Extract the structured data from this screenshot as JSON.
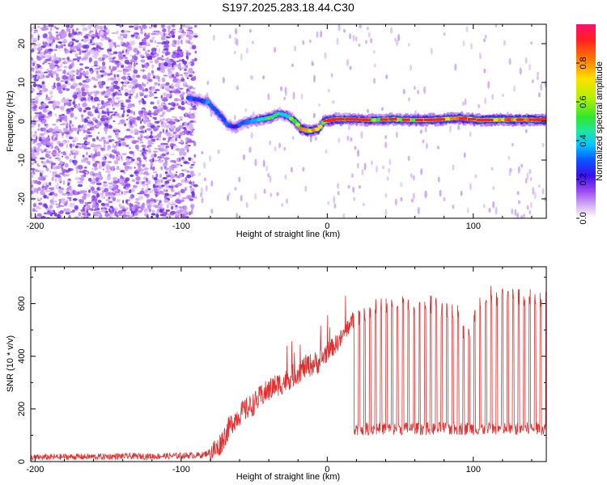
{
  "chart_data": [
    {
      "type": "heatmap",
      "title": "S197.2025.283.18.44.C30",
      "xlabel": "Height of straight line (km)",
      "ylabel": "Frequency (Hz)",
      "xlim": [
        -203,
        150
      ],
      "ylim": [
        -25,
        25
      ],
      "xticks": [
        -200,
        -100,
        0,
        100
      ],
      "yticks": [
        20,
        10,
        0,
        -10,
        -20
      ],
      "colorbar": {
        "label": "Normalized spectral amplitude",
        "range": [
          0.0,
          1.0
        ],
        "ticks": [
          0.0,
          0.2,
          0.4,
          0.6,
          0.8
        ],
        "tick_labels": [
          "0.0",
          "0.2",
          "0.4",
          "0.6",
          "0.8"
        ]
      },
      "noise_region": {
        "x_from": -203,
        "x_to": -90,
        "frequency_range": [
          -25,
          25
        ],
        "amplitude": 0.15
      },
      "ridge": {
        "x": [
          -95,
          -88,
          -82,
          -77,
          -72,
          -68,
          -63,
          -58,
          -52,
          -45,
          -38,
          -33,
          -28,
          -22,
          -18,
          -12,
          -6,
          -2,
          5,
          15,
          30,
          45,
          60,
          75,
          90,
          105,
          120,
          135,
          150
        ],
        "frequency": [
          6,
          5.5,
          5,
          3,
          1,
          -1,
          -1.5,
          -0.5,
          0,
          0.5,
          1,
          2,
          1.5,
          0,
          -2,
          -2.5,
          -2,
          0,
          0.5,
          0.5,
          0.3,
          0.5,
          0.3,
          0.4,
          0.8,
          0.3,
          0.4,
          0.4,
          0.4
        ],
        "amplitude": [
          0.35,
          0.3,
          0.35,
          0.35,
          0.35,
          0.3,
          0.3,
          0.3,
          0.4,
          0.5,
          0.6,
          0.5,
          0.5,
          0.7,
          0.85,
          0.9,
          0.7,
          0.7,
          0.85,
          0.6,
          0.6,
          0.7,
          0.7,
          0.8,
          0.8,
          0.85,
          0.85,
          0.9,
          0.9
        ]
      }
    },
    {
      "type": "line",
      "xlabel": "Height of straight line (km)",
      "ylabel": "SNR (10 * v/v)",
      "xlim": [
        -203,
        150
      ],
      "ylim": [
        0,
        740
      ],
      "xticks": [
        -200,
        -100,
        0,
        100
      ],
      "yticks": [
        0,
        200,
        400,
        600
      ],
      "series": [
        {
          "name": "SNR",
          "color": "#e03030",
          "x": [
            -203,
            -180,
            -160,
            -140,
            -120,
            -100,
            -85,
            -75,
            -70,
            -65,
            -60,
            -55,
            -50,
            -45,
            -40,
            -35,
            -30,
            -25,
            -20,
            -15,
            -10,
            -5,
            0,
            5,
            10,
            15,
            20,
            25,
            30,
            40,
            50,
            60,
            70,
            80,
            90,
            95,
            100,
            105,
            110,
            115,
            120,
            125,
            130,
            135,
            140,
            145,
            150
          ],
          "values": [
            15,
            18,
            18,
            20,
            20,
            22,
            25,
            50,
            100,
            150,
            180,
            200,
            220,
            250,
            270,
            290,
            300,
            320,
            340,
            360,
            370,
            380,
            420,
            440,
            470,
            520,
            550,
            560,
            580,
            590,
            600,
            590,
            600,
            580,
            560,
            460,
            540,
            600,
            640,
            620,
            640,
            620,
            630,
            600,
            640,
            620,
            640
          ],
          "dropouts": {
            "x_from": 18,
            "x_to": 150,
            "level": [
              100,
              150
            ],
            "count": 35
          }
        }
      ]
    }
  ]
}
